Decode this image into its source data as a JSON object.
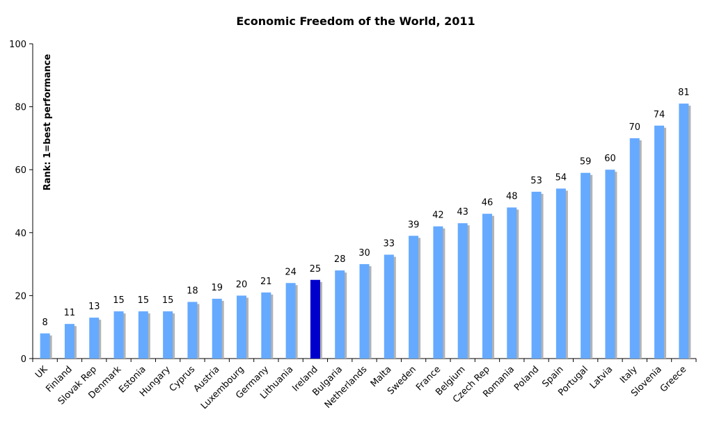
{
  "chart_data": {
    "type": "bar",
    "title": "Economic Freedom of the World, 2011",
    "ylabel": "Rank: 1=best performance",
    "xlabel": "",
    "ylim": [
      0,
      100
    ],
    "yticks": [
      0,
      20,
      40,
      60,
      80,
      100
    ],
    "grid": false,
    "legend": "none",
    "categories": [
      "UK",
      "Finland",
      "Slovak Rep",
      "Denmark",
      "Estonia",
      "Hungary",
      "Cyprus",
      "Austria",
      "Luxembourg",
      "Germany",
      "Lithuania",
      "Ireland",
      "Bulgaria",
      "Netherlands",
      "Malta",
      "Sweden",
      "France",
      "Belgium",
      "Czech Rep",
      "Romania",
      "Poland",
      "Spain",
      "Portugal",
      "Latvia",
      "Italy",
      "Slovenia",
      "Greece"
    ],
    "values": [
      8,
      11,
      13,
      15,
      15,
      15,
      18,
      19,
      20,
      21,
      24,
      25,
      28,
      30,
      33,
      39,
      42,
      43,
      46,
      48,
      53,
      54,
      59,
      60,
      70,
      74,
      81
    ],
    "highlight": "Ireland",
    "colors": {
      "bar": "#66aaff",
      "highlight": "#0000cc",
      "shadow": "#b3b3b3"
    }
  }
}
